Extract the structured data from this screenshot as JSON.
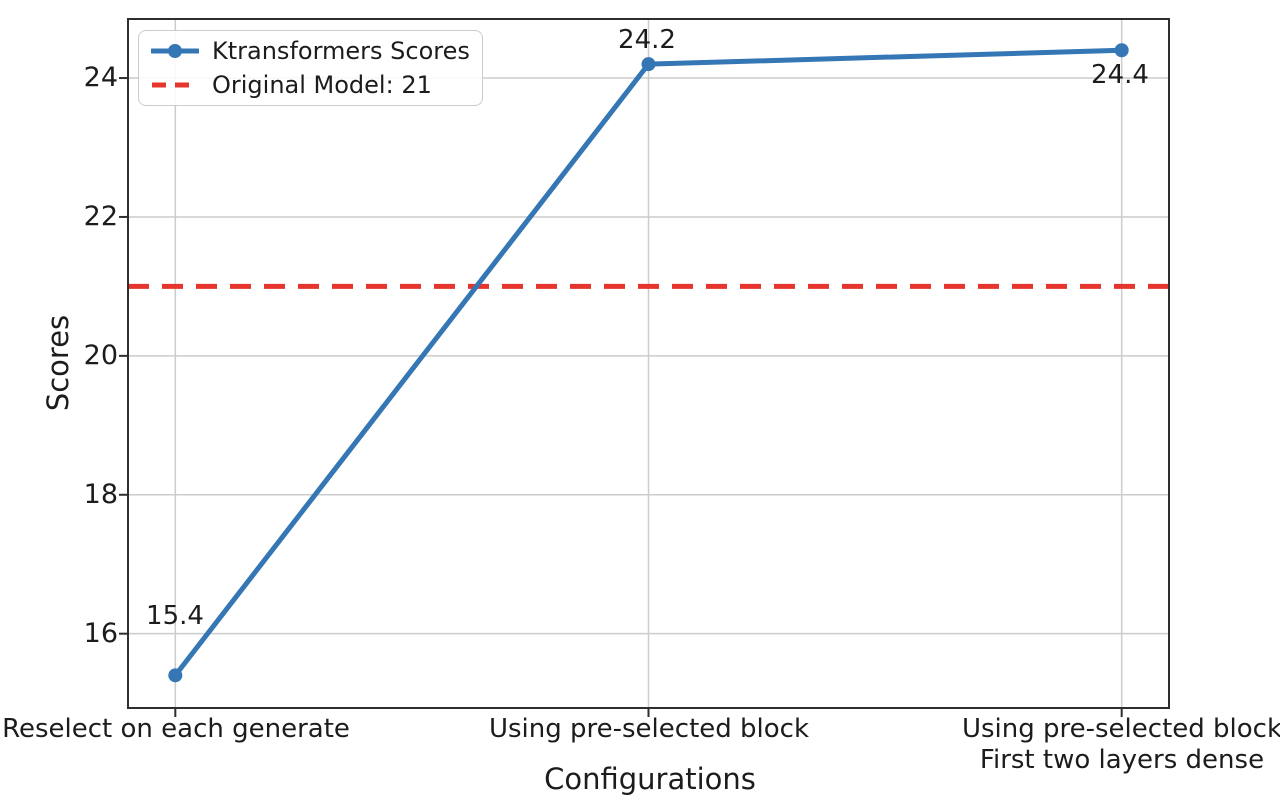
{
  "chart_data": {
    "type": "line",
    "xlabel": "Configurations",
    "ylabel": "Scores",
    "categories": [
      "Reselect on each generate",
      "Using pre-selected block",
      "Using pre-selected block\nFirst two layers dense"
    ],
    "series": [
      {
        "name": "Ktransformers Scores",
        "values": [
          15.4,
          24.2,
          24.4
        ],
        "color": "#3576b5",
        "marker": "circle",
        "line_width": 5
      }
    ],
    "reference_line": {
      "label": "Original Model: 21",
      "value": 21,
      "color": "#e6352c",
      "style": "dashed",
      "line_width": 5
    },
    "point_labels": [
      "15.4",
      "24.2",
      "24.4"
    ],
    "yticks": [
      16,
      18,
      20,
      22,
      24
    ],
    "ylim": [
      14.93,
      24.85
    ],
    "xlim": [
      -0.1,
      2.1
    ],
    "grid": true,
    "grid_color": "#cccccc",
    "spine_color": "#2e2e2e",
    "legend_position": "upper-left"
  }
}
